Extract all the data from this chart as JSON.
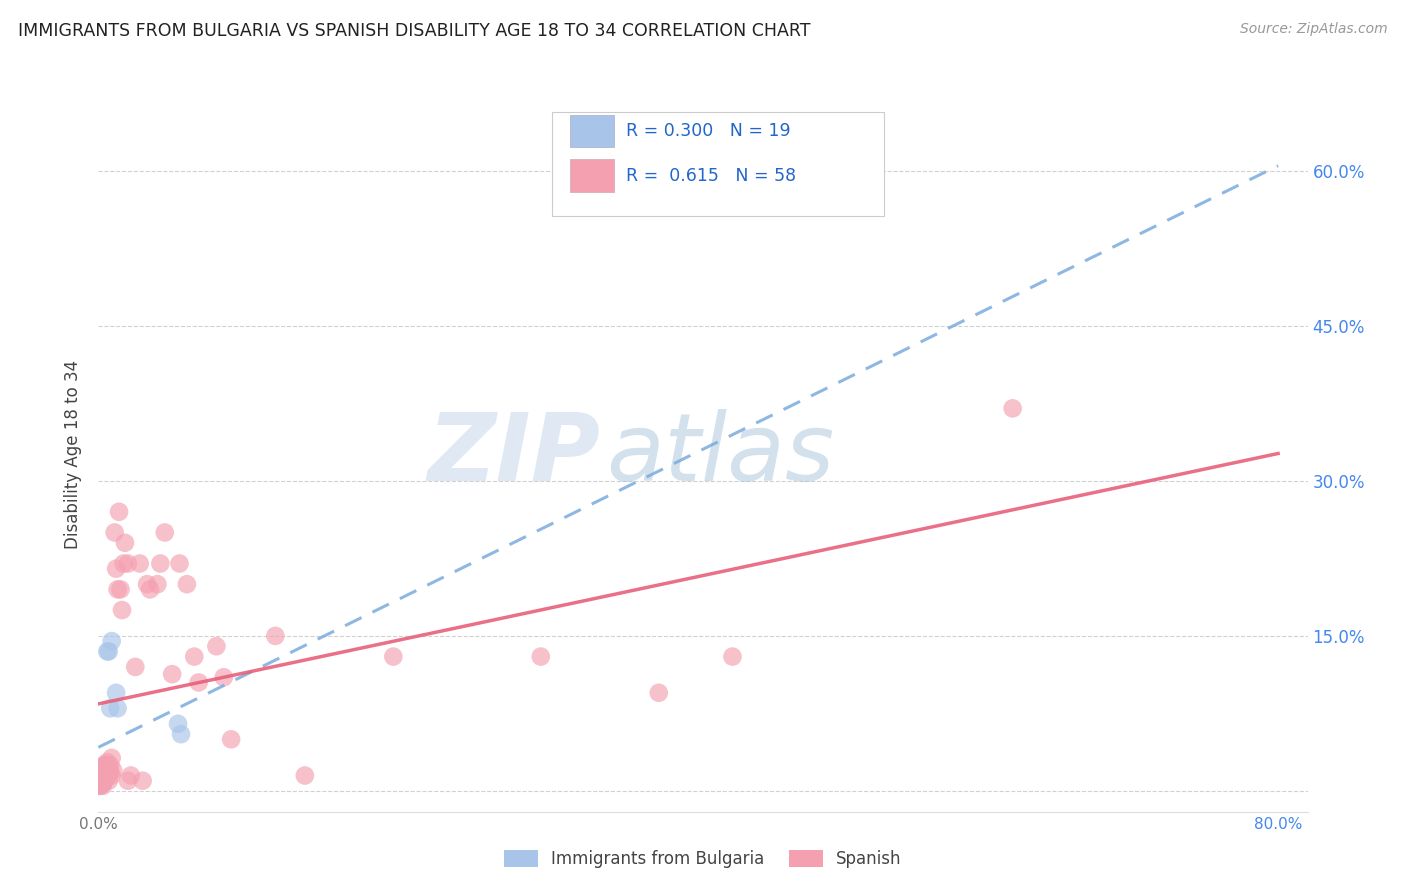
{
  "title": "IMMIGRANTS FROM BULGARIA VS SPANISH DISABILITY AGE 18 TO 34 CORRELATION CHART",
  "source": "Source: ZipAtlas.com",
  "ylabel": "Disability Age 18 to 34",
  "legend_label1": "Immigrants from Bulgaria",
  "legend_label2": "Spanish",
  "bulgaria_color": "#a8c4e8",
  "spanish_color": "#f4a0b0",
  "trend_bulgaria_color": "#7aabdd",
  "trend_spanish_color": "#e8607a",
  "watermark_color": "#d0dff0",
  "xlim": [
    0.0,
    0.82
  ],
  "ylim": [
    -0.02,
    0.67
  ],
  "x_ticks": [
    0.0,
    0.1,
    0.2,
    0.3,
    0.4,
    0.5,
    0.6,
    0.7,
    0.8
  ],
  "y_ticks": [
    0.0,
    0.15,
    0.3,
    0.45,
    0.6
  ],
  "y_tick_right_labels": [
    "",
    "15.0%",
    "30.0%",
    "45.0%",
    "60.0%"
  ],
  "bulgaria_x": [
    0.0,
    0.001,
    0.001,
    0.002,
    0.002,
    0.002,
    0.003,
    0.003,
    0.004,
    0.005,
    0.006,
    0.006,
    0.007,
    0.008,
    0.009,
    0.012,
    0.013,
    0.054,
    0.056
  ],
  "bulgaria_y": [
    0.008,
    0.013,
    0.018,
    0.006,
    0.01,
    0.015,
    0.012,
    0.008,
    0.025,
    0.015,
    0.02,
    0.135,
    0.135,
    0.08,
    0.145,
    0.095,
    0.08,
    0.065,
    0.055
  ],
  "spanish_x": [
    0.0,
    0.001,
    0.001,
    0.001,
    0.002,
    0.002,
    0.002,
    0.003,
    0.003,
    0.003,
    0.004,
    0.004,
    0.004,
    0.005,
    0.005,
    0.006,
    0.006,
    0.007,
    0.007,
    0.008,
    0.008,
    0.009,
    0.009,
    0.01,
    0.011,
    0.012,
    0.013,
    0.014,
    0.015,
    0.016,
    0.017,
    0.018,
    0.02,
    0.02,
    0.022,
    0.025,
    0.028,
    0.03,
    0.033,
    0.035,
    0.04,
    0.042,
    0.045,
    0.05,
    0.055,
    0.06,
    0.065,
    0.068,
    0.08,
    0.085,
    0.09,
    0.12,
    0.14,
    0.2,
    0.3,
    0.38,
    0.43,
    0.62
  ],
  "spanish_y": [
    0.005,
    0.01,
    0.005,
    0.015,
    0.008,
    0.015,
    0.01,
    0.005,
    0.012,
    0.02,
    0.01,
    0.02,
    0.025,
    0.012,
    0.025,
    0.015,
    0.028,
    0.01,
    0.022,
    0.018,
    0.025,
    0.015,
    0.032,
    0.02,
    0.25,
    0.215,
    0.195,
    0.27,
    0.195,
    0.175,
    0.22,
    0.24,
    0.22,
    0.01,
    0.015,
    0.12,
    0.22,
    0.01,
    0.2,
    0.195,
    0.2,
    0.22,
    0.25,
    0.113,
    0.22,
    0.2,
    0.13,
    0.105,
    0.14,
    0.11,
    0.05,
    0.15,
    0.015,
    0.13,
    0.13,
    0.095,
    0.13,
    0.37
  ],
  "trend_bul_slope": 0.57,
  "trend_bul_intercept": 0.005,
  "trend_spa_slope": 0.5,
  "trend_spa_intercept": 0.005
}
